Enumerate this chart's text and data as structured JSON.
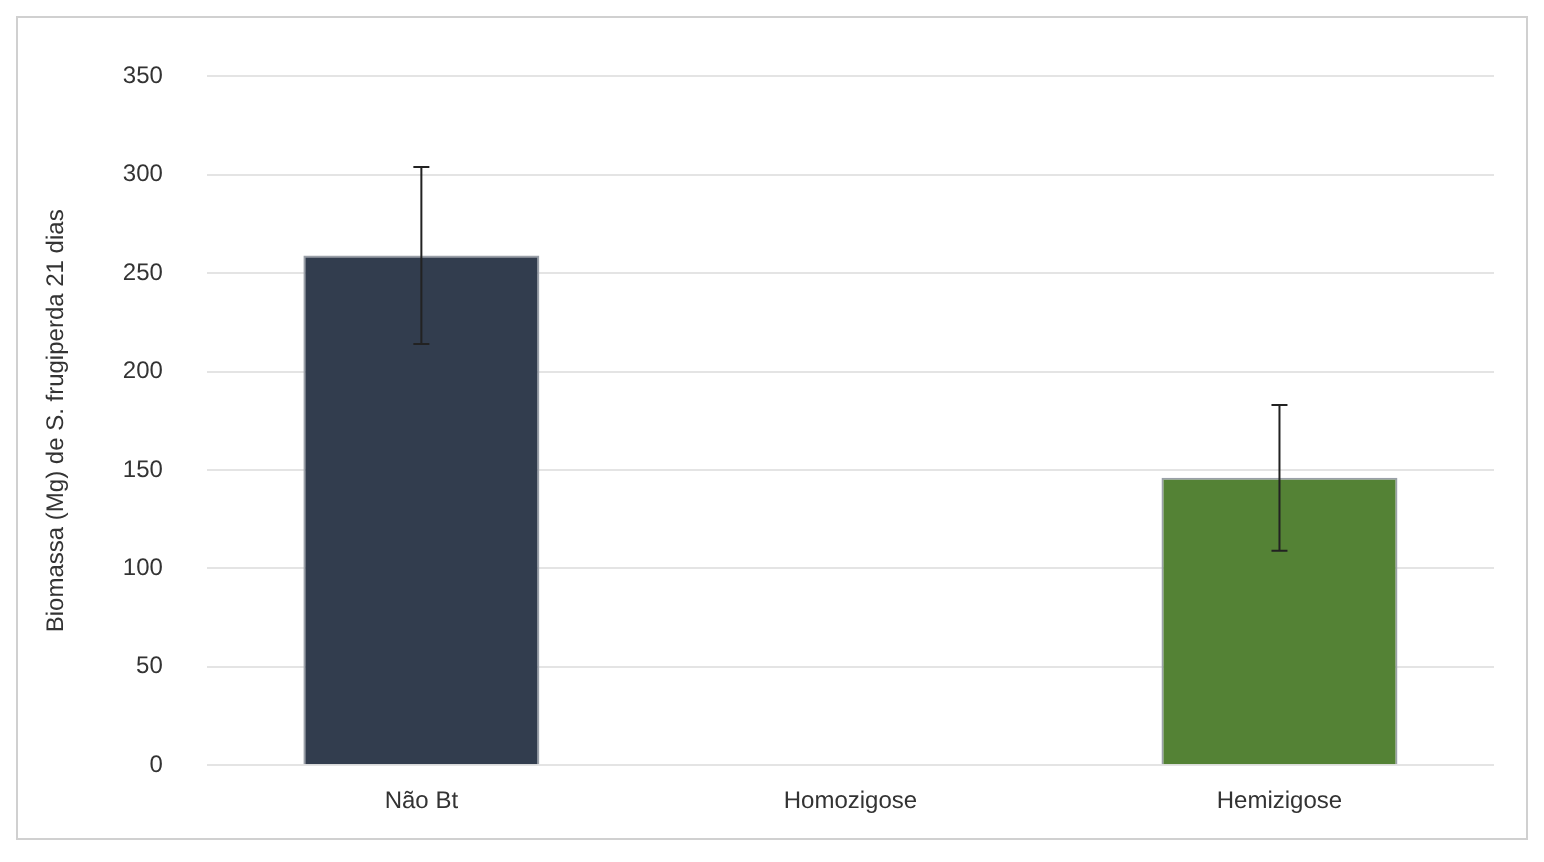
{
  "chart_data": {
    "type": "bar",
    "ylabel": "Biomassa (Mg) de S. frugiperda 21 dias",
    "categories": [
      "Não Bt",
      "Homozigose",
      "Hemizigose"
    ],
    "values": [
      259,
      0,
      146
    ],
    "colors": [
      "#323d4e",
      "#548235",
      "#548235"
    ],
    "errors": [
      [
        214,
        304
      ],
      null,
      [
        109,
        183
      ]
    ],
    "ylim": [
      0,
      350
    ],
    "yticks": [
      0,
      50,
      100,
      150,
      200,
      250,
      300,
      350
    ],
    "grid": "y",
    "legend": false
  }
}
